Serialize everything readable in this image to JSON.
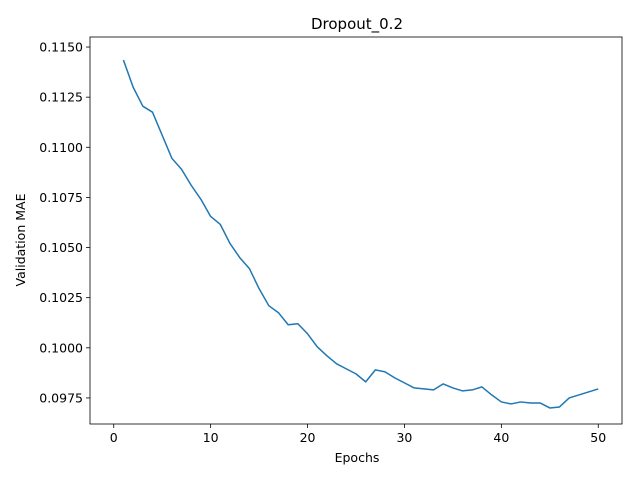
{
  "chart_data": {
    "type": "line",
    "title": "Dropout_0.2",
    "xlabel": "Epochs",
    "ylabel": "Validation MAE",
    "xlim": [
      -2.45,
      52.45
    ],
    "ylim": [
      0.0962,
      0.1155
    ],
    "x_ticks": [
      0,
      10,
      20,
      30,
      40,
      50
    ],
    "y_ticks": [
      0.0975,
      0.1,
      0.1025,
      0.105,
      0.1075,
      0.11,
      0.1125,
      0.115
    ],
    "x_tick_labels": [
      "0",
      "10",
      "20",
      "30",
      "40",
      "50"
    ],
    "y_tick_labels": [
      "0.0975",
      "0.1000",
      "0.1025",
      "0.1050",
      "0.1075",
      "0.1100",
      "0.1125",
      "0.1150"
    ],
    "grid": false,
    "series": [
      {
        "color": "#1f77b4",
        "x": [
          1,
          2,
          3,
          4,
          5,
          6,
          7,
          8,
          9,
          10,
          11,
          12,
          13,
          14,
          15,
          16,
          17,
          18,
          19,
          20,
          21,
          22,
          23,
          24,
          25,
          26,
          27,
          28,
          29,
          30,
          31,
          32,
          33,
          34,
          35,
          36,
          37,
          38,
          39,
          40,
          41,
          42,
          43,
          44,
          45,
          46,
          47,
          48,
          49,
          50
        ],
        "y": [
          0.11435,
          0.113,
          0.11205,
          0.11175,
          0.1106,
          0.10945,
          0.1089,
          0.1081,
          0.1074,
          0.10655,
          0.10615,
          0.1052,
          0.1045,
          0.10395,
          0.10295,
          0.1021,
          0.10175,
          0.10115,
          0.1012,
          0.1007,
          0.10005,
          0.0996,
          0.0992,
          0.09895,
          0.0987,
          0.0983,
          0.0989,
          0.0988,
          0.0985,
          0.09825,
          0.098,
          0.09795,
          0.0979,
          0.0982,
          0.098,
          0.09785,
          0.0979,
          0.09805,
          0.09765,
          0.0973,
          0.0972,
          0.0973,
          0.09725,
          0.09725,
          0.097,
          0.09705,
          0.0975,
          0.09765,
          0.0978,
          0.09795
        ]
      }
    ]
  }
}
